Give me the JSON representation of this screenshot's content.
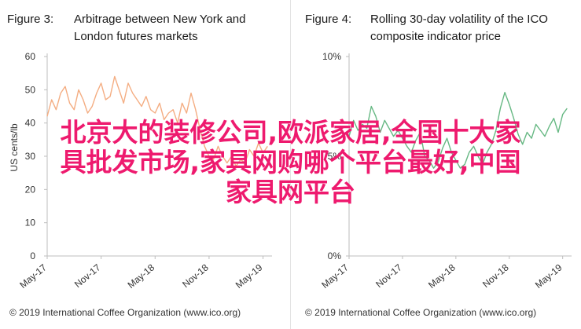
{
  "chart_data": [
    {
      "type": "line",
      "figure_label": "Figure 3:",
      "title": "Arbitrage between New York and London futures markets",
      "title_lines": [
        "Arbitrage between New York and",
        "London futures markets"
      ],
      "ylabel": "US cents/lb",
      "yticks": [
        "0",
        "10",
        "20",
        "30",
        "40",
        "50",
        "60"
      ],
      "ylim": [
        0,
        60
      ],
      "xticks": [
        "May-17",
        "Nov-17",
        "May-18",
        "Nov-18",
        "May-19"
      ],
      "xlim": [
        0,
        25
      ],
      "color": "#f4ad82",
      "grid": false,
      "credit": "© 2019 International Coffee Organization (www.ico.org)",
      "series": [
        {
          "x": [
            0,
            0.5,
            1,
            1.5,
            2,
            2.5,
            3,
            3.5,
            4,
            4.5,
            5,
            5.5,
            6,
            6.5,
            7,
            7.5,
            8,
            8.5,
            9,
            9.5,
            10,
            10.5,
            11,
            11.5,
            12,
            12.5,
            13,
            13.5,
            14,
            14.5,
            15,
            15.5,
            16,
            16.5,
            17,
            17.5,
            18,
            18.5,
            19,
            19.5,
            20,
            20.5,
            21,
            21.5,
            22,
            22.5,
            23,
            23.5,
            24,
            24.5
          ],
          "values": [
            42,
            47,
            44,
            49,
            51,
            46,
            44,
            50,
            47,
            43,
            45,
            49,
            52,
            47,
            48,
            54,
            50,
            46,
            52,
            49,
            47,
            45,
            48,
            44,
            43,
            46,
            41,
            43,
            44,
            40,
            46,
            43,
            49,
            44,
            38,
            33,
            30,
            29,
            33,
            30,
            28,
            30,
            27,
            29,
            28,
            32,
            30,
            34,
            31,
            33
          ]
        }
      ]
    },
    {
      "type": "line",
      "figure_label": "Figure 4:",
      "title": "Rolling 30-day volatility of the ICO composite indicator price",
      "title_lines": [
        "Rolling 30-day volatility of the ICO",
        "composite indicator price"
      ],
      "ylabel": "",
      "yticks": [
        "0%",
        "5%",
        "10%"
      ],
      "ylim": [
        0,
        10
      ],
      "xticks": [
        "May-17",
        "Nov-17",
        "May-18",
        "Nov-18",
        "May-19"
      ],
      "xlim": [
        0,
        25
      ],
      "color": "#66b883",
      "grid": false,
      "credit": "© 2019 International Coffee Organization (www.ico.org)",
      "series": [
        {
          "x": [
            0,
            0.5,
            1,
            1.5,
            2,
            2.5,
            3,
            3.5,
            4,
            4.5,
            5,
            5.5,
            6,
            6.5,
            7,
            7.5,
            8,
            8.5,
            9,
            9.5,
            10,
            10.5,
            11,
            11.5,
            12,
            12.5,
            13,
            13.5,
            14,
            14.5,
            15,
            15.5,
            16,
            16.5,
            17,
            17.5,
            18,
            18.5,
            19,
            19.5,
            20,
            20.5,
            21,
            21.5,
            22,
            22.5,
            23,
            23.5,
            24,
            24.5
          ],
          "values": [
            6.0,
            6.8,
            6.3,
            6.6,
            6.4,
            7.5,
            7.0,
            6.2,
            6.8,
            6.4,
            6.0,
            6.3,
            5.9,
            5.5,
            5.2,
            5.8,
            6.2,
            5.0,
            4.8,
            4.4,
            4.7,
            5.4,
            5.9,
            5.2,
            4.8,
            4.4,
            4.6,
            5.2,
            5.5,
            5.0,
            4.6,
            5.2,
            5.6,
            6.3,
            7.4,
            8.2,
            7.6,
            6.9,
            6.1,
            5.6,
            6.2,
            5.9,
            6.6,
            6.3,
            6.0,
            6.5,
            6.9,
            6.2,
            7.1,
            7.4
          ]
        }
      ]
    }
  ],
  "overlay_text": [
    "北京大的装修公司,欧派家居,全国十大家",
    "具批发市场,家具网购哪个平台最好,中国",
    "家具网平台"
  ]
}
